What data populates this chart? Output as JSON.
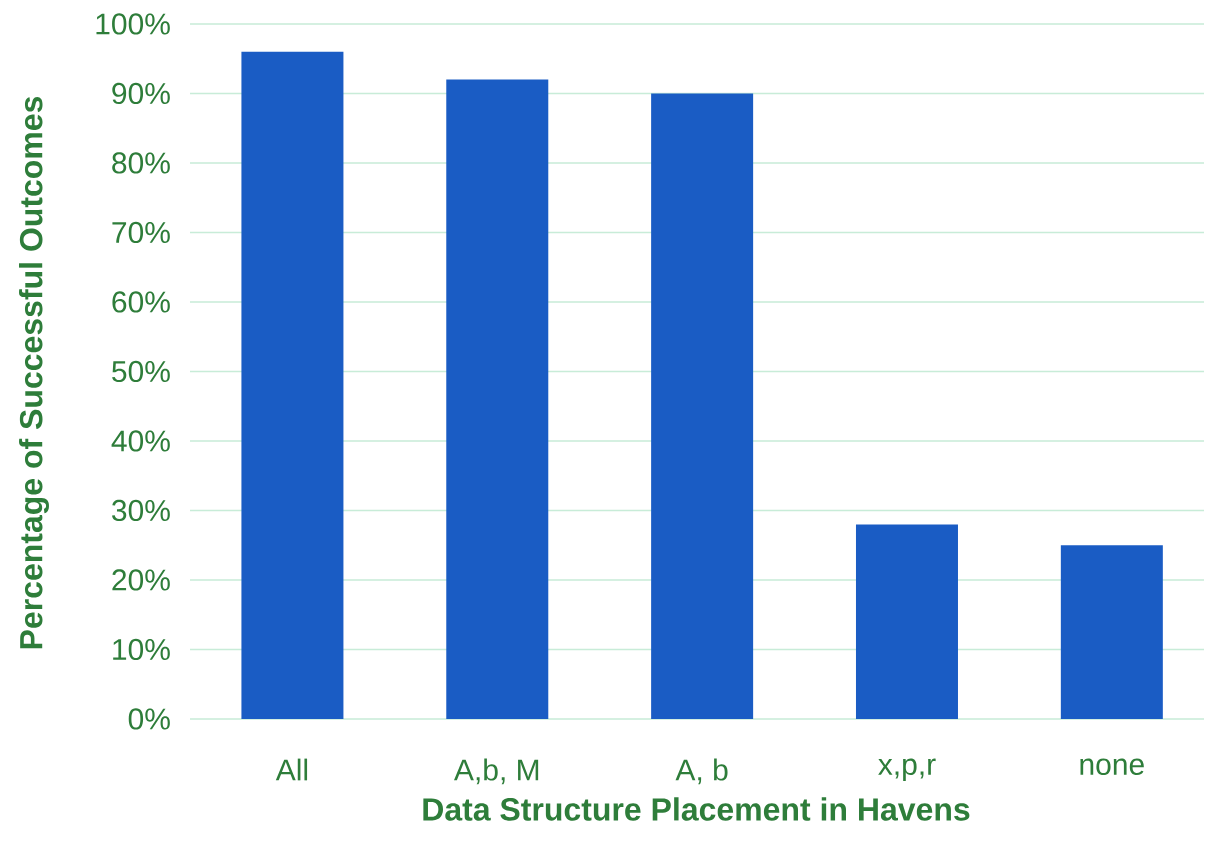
{
  "chart_data": {
    "type": "bar",
    "xlabel": "Data Structure Placement in Havens",
    "ylabel": "Percentage of Successful Outcomes",
    "categories": [
      "All",
      "A,b, M",
      "A, b",
      "x,p,r",
      "none"
    ],
    "values": [
      96,
      92,
      90,
      28,
      25
    ],
    "color": "#1a5cc4",
    "ylim": [
      0,
      100
    ],
    "yticks": [
      {
        "value": 0,
        "label": "0%"
      },
      {
        "value": 10,
        "label": "10%"
      },
      {
        "value": 20,
        "label": "20%"
      },
      {
        "value": 30,
        "label": "30%"
      },
      {
        "value": 40,
        "label": "40%"
      },
      {
        "value": 50,
        "label": "50%"
      },
      {
        "value": 60,
        "label": "60%"
      },
      {
        "value": 70,
        "label": "70%"
      },
      {
        "value": 80,
        "label": "80%"
      },
      {
        "value": 90,
        "label": "90%"
      },
      {
        "value": 100,
        "label": "100%"
      }
    ],
    "grid": "y"
  }
}
